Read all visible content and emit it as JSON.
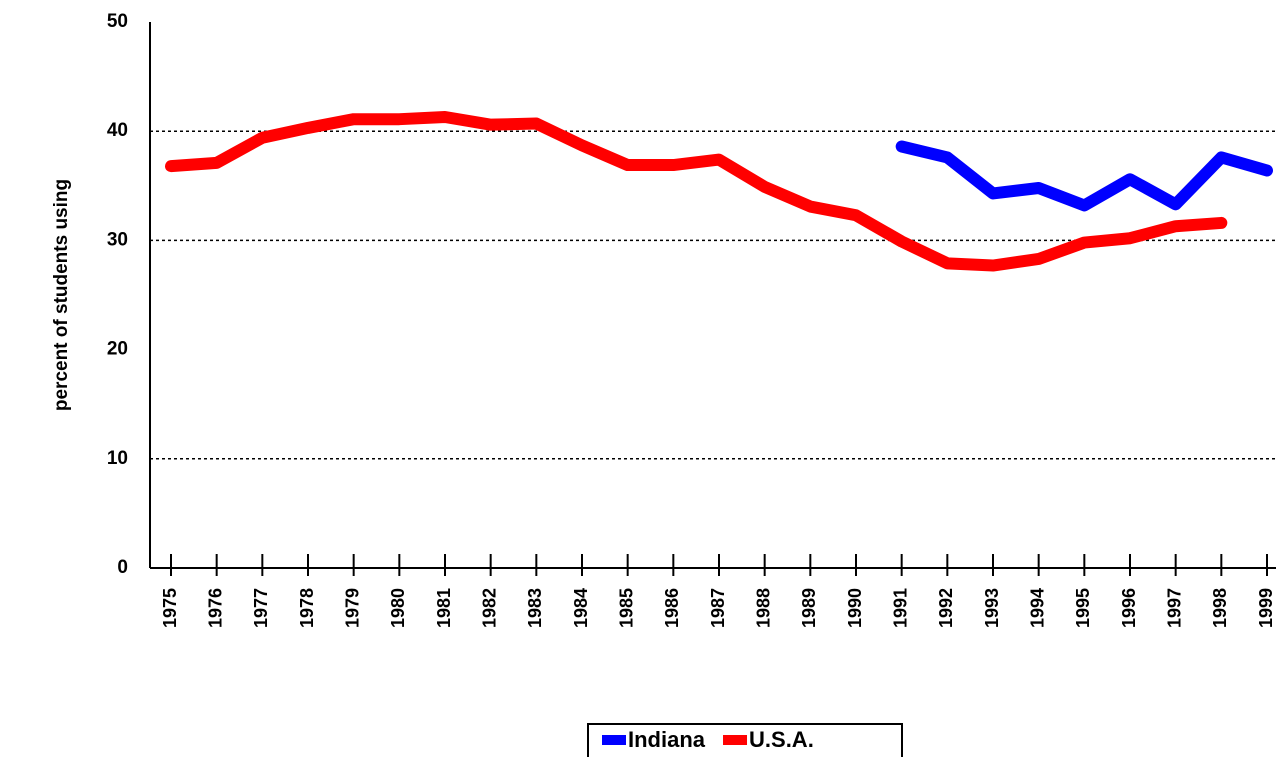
{
  "chart_data": {
    "type": "line",
    "y_label": "percent of students using",
    "categories": [
      "1975",
      "1976",
      "1977",
      "1978",
      "1979",
      "1980",
      "1981",
      "1982",
      "1983",
      "1984",
      "1985",
      "1986",
      "1987",
      "1988",
      "1989",
      "1990",
      "1991",
      "1992",
      "1993",
      "1994",
      "1995",
      "1996",
      "1997",
      "1998",
      "1999"
    ],
    "series": [
      {
        "name": "Indiana",
        "color": "#0000ff",
        "values": [
          null,
          null,
          null,
          null,
          null,
          null,
          null,
          null,
          null,
          null,
          null,
          null,
          null,
          null,
          null,
          null,
          38.6,
          37.6,
          34.3,
          34.8,
          33.2,
          35.6,
          33.3,
          37.6,
          36.4
        ]
      },
      {
        "name": "U.S.A.",
        "color": "#ff0000",
        "values": [
          36.8,
          37.1,
          39.4,
          40.3,
          41.1,
          41.1,
          41.3,
          40.6,
          40.7,
          38.7,
          36.9,
          36.9,
          37.4,
          34.9,
          33.1,
          32.3,
          29.9,
          27.9,
          27.7,
          28.3,
          29.8,
          30.2,
          31.3,
          31.6,
          null
        ]
      }
    ],
    "ylim": [
      0,
      50
    ],
    "yticks": [
      0,
      10,
      20,
      30,
      40,
      50
    ],
    "gridlines": [
      10,
      30,
      40
    ],
    "legend": "bottom"
  }
}
